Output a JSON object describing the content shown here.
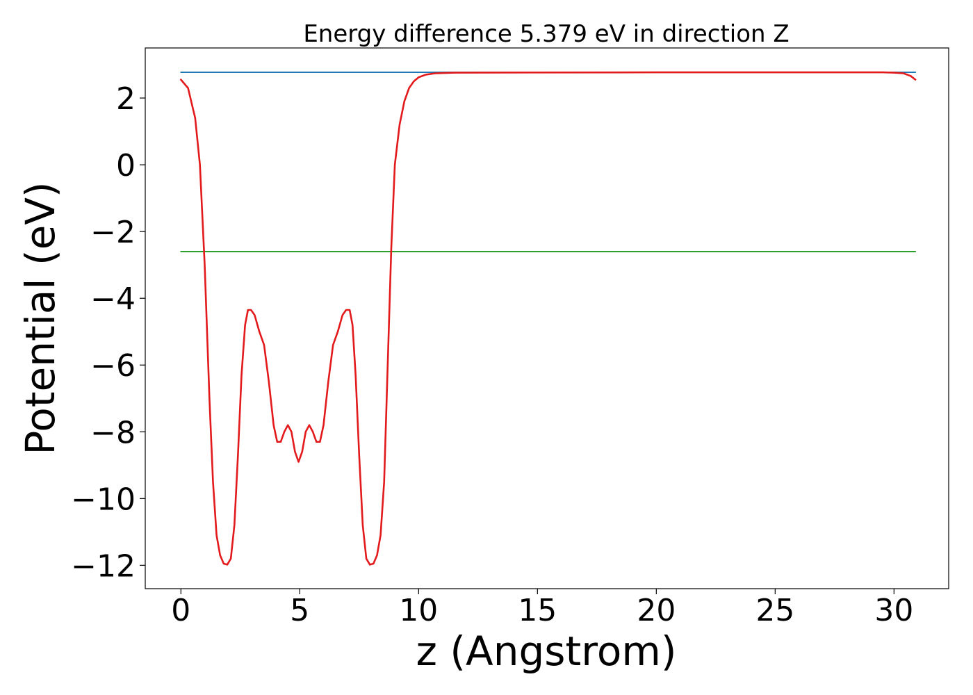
{
  "chart_data": {
    "type": "line",
    "title": "Energy difference 5.379 eV in direction Z",
    "xlabel": "z (Angstrom)",
    "ylabel": "Potential (eV)",
    "xlim": [
      -1.5,
      32.3
    ],
    "ylim": [
      -12.7,
      3.5
    ],
    "x_ticks": [
      {
        "value": 0,
        "label": "0"
      },
      {
        "value": 5,
        "label": "5"
      },
      {
        "value": 10,
        "label": "10"
      },
      {
        "value": 15,
        "label": "15"
      },
      {
        "value": 20,
        "label": "20"
      },
      {
        "value": 25,
        "label": "25"
      },
      {
        "value": 30,
        "label": "30"
      }
    ],
    "y_ticks": [
      {
        "value": 2,
        "label": "2"
      },
      {
        "value": 0,
        "label": "0"
      },
      {
        "value": -2,
        "label": "−2"
      },
      {
        "value": -4,
        "label": "−4"
      },
      {
        "value": -6,
        "label": "−6"
      },
      {
        "value": -8,
        "label": "−8"
      },
      {
        "value": -10,
        "label": "−10"
      },
      {
        "value": -12,
        "label": "−12"
      }
    ],
    "grid": false,
    "legend": "none",
    "series": [
      {
        "color": "#1f77b4",
        "style": "line",
        "points": [
          [
            0,
            2.77
          ],
          [
            30.9,
            2.77
          ]
        ]
      },
      {
        "color": "#2ca02c",
        "style": "line",
        "points": [
          [
            0,
            -2.6
          ],
          [
            30.9,
            -2.6
          ]
        ]
      },
      {
        "color": "#e31a1c",
        "style": "line",
        "points": [
          [
            0.0,
            2.55
          ],
          [
            0.3,
            2.3
          ],
          [
            0.6,
            1.4
          ],
          [
            0.8,
            0.0
          ],
          [
            0.9,
            -1.5
          ],
          [
            1.0,
            -3.0
          ],
          [
            1.1,
            -5.0
          ],
          [
            1.2,
            -7.0
          ],
          [
            1.35,
            -9.5
          ],
          [
            1.5,
            -11.1
          ],
          [
            1.65,
            -11.7
          ],
          [
            1.8,
            -11.95
          ],
          [
            1.95,
            -11.98
          ],
          [
            2.1,
            -11.8
          ],
          [
            2.25,
            -10.8
          ],
          [
            2.4,
            -8.7
          ],
          [
            2.55,
            -6.3
          ],
          [
            2.7,
            -4.8
          ],
          [
            2.82,
            -4.35
          ],
          [
            2.95,
            -4.35
          ],
          [
            3.1,
            -4.5
          ],
          [
            3.3,
            -5.0
          ],
          [
            3.5,
            -5.4
          ],
          [
            3.7,
            -6.5
          ],
          [
            3.9,
            -7.8
          ],
          [
            4.05,
            -8.3
          ],
          [
            4.2,
            -8.3
          ],
          [
            4.35,
            -8.0
          ],
          [
            4.5,
            -7.8
          ],
          [
            4.65,
            -8.0
          ],
          [
            4.8,
            -8.6
          ],
          [
            4.95,
            -8.9
          ],
          [
            5.1,
            -8.6
          ],
          [
            5.25,
            -8.0
          ],
          [
            5.4,
            -7.8
          ],
          [
            5.55,
            -8.0
          ],
          [
            5.7,
            -8.3
          ],
          [
            5.85,
            -8.3
          ],
          [
            6.0,
            -7.8
          ],
          [
            6.2,
            -6.5
          ],
          [
            6.4,
            -5.4
          ],
          [
            6.6,
            -5.0
          ],
          [
            6.8,
            -4.5
          ],
          [
            6.95,
            -4.35
          ],
          [
            7.1,
            -4.35
          ],
          [
            7.22,
            -4.8
          ],
          [
            7.35,
            -6.3
          ],
          [
            7.5,
            -8.7
          ],
          [
            7.65,
            -10.8
          ],
          [
            7.8,
            -11.8
          ],
          [
            7.95,
            -11.98
          ],
          [
            8.1,
            -11.95
          ],
          [
            8.25,
            -11.7
          ],
          [
            8.4,
            -11.1
          ],
          [
            8.55,
            -9.5
          ],
          [
            8.7,
            -6.0
          ],
          [
            8.85,
            -2.5
          ],
          [
            9.0,
            0.0
          ],
          [
            9.2,
            1.2
          ],
          [
            9.4,
            1.9
          ],
          [
            9.6,
            2.3
          ],
          [
            9.8,
            2.5
          ],
          [
            10.0,
            2.62
          ],
          [
            10.3,
            2.7
          ],
          [
            10.7,
            2.74
          ],
          [
            11.5,
            2.76
          ],
          [
            20.0,
            2.77
          ],
          [
            29.5,
            2.77
          ],
          [
            30.0,
            2.76
          ],
          [
            30.4,
            2.74
          ],
          [
            30.7,
            2.66
          ],
          [
            30.9,
            2.55
          ]
        ]
      }
    ]
  }
}
